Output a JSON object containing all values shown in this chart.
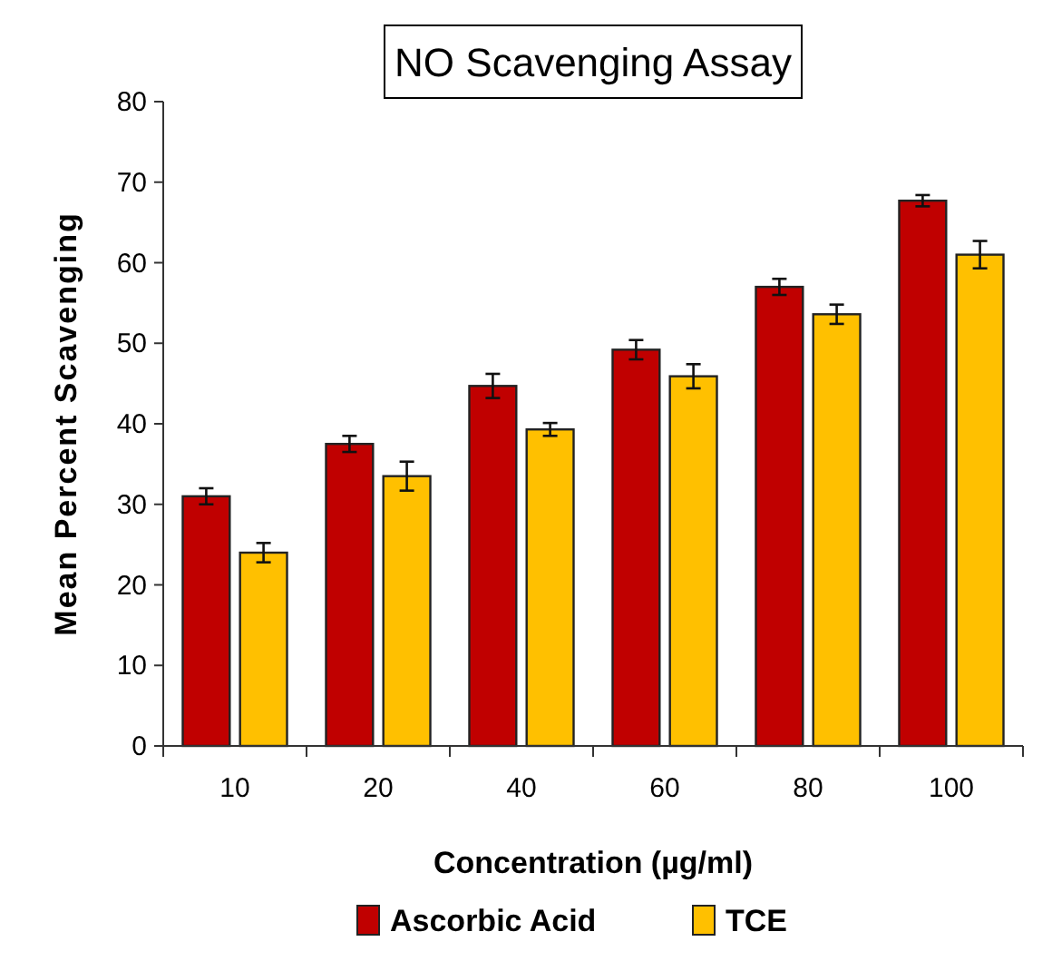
{
  "chart_data": {
    "type": "bar",
    "title": "NO Scavenging Assay",
    "xlabel": "Concentration (µg/ml)",
    "ylabel": "Mean Percent Scavenging",
    "categories": [
      "10",
      "20",
      "40",
      "60",
      "80",
      "100"
    ],
    "series": [
      {
        "name": "Ascorbic Acid",
        "color": "#c00000",
        "values": [
          31,
          37.5,
          44.7,
          49.2,
          57,
          67.7
        ],
        "errors": [
          1,
          1,
          1.5,
          1.2,
          1,
          0.7
        ]
      },
      {
        "name": "TCE",
        "color": "#ffc000",
        "values": [
          24,
          33.5,
          39.3,
          45.9,
          53.6,
          61
        ],
        "errors": [
          1.2,
          1.8,
          0.8,
          1.5,
          1.2,
          1.7
        ]
      }
    ],
    "ylim": [
      0,
      80
    ],
    "yticks": [
      0,
      10,
      20,
      30,
      40,
      50,
      60,
      70,
      80
    ],
    "grid": false,
    "legend": "bottom"
  }
}
